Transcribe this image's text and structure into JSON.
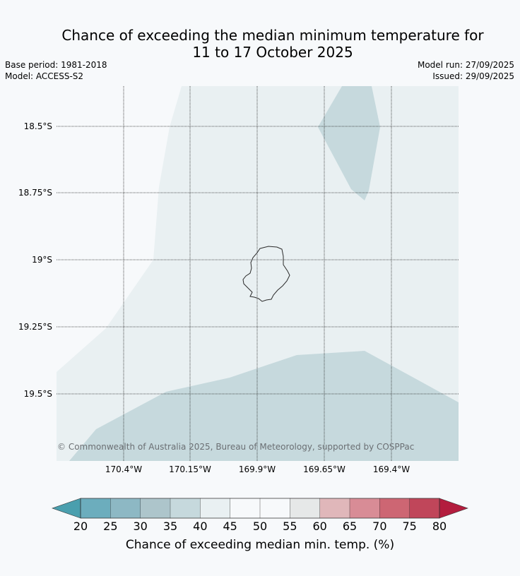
{
  "title": {
    "line1": "Chance of exceeding the median minimum temperature for",
    "line2": "11 to 17 October 2025"
  },
  "meta": {
    "base_period": "Base period: 1981-2018",
    "model": "Model: ACCESS-S2",
    "model_run": "Model run: 27/09/2025",
    "issued": "Issued: 29/09/2025"
  },
  "map": {
    "lat_labels": [
      "18.5°S",
      "18.75°S",
      "19°S",
      "19.25°S",
      "19.5°S"
    ],
    "lon_labels": [
      "170.4°W",
      "170.15°W",
      "169.9°W",
      "169.65°W",
      "169.4°W"
    ],
    "copyright": "© Commonwealth of Australia 2025, Bureau of Meteorology, supported by COSPPac",
    "colors": {
      "band_35_40": "#c6d9dd",
      "band_40_45": "#e9f0f2",
      "band_45_50": "#f7f9fb",
      "coast": "#2b2b2b",
      "grid": "#222222"
    }
  },
  "colorbar": {
    "label": "Chance of exceeding median min. temp. (%)",
    "ticks": [
      "20",
      "25",
      "30",
      "35",
      "40",
      "45",
      "50",
      "55",
      "60",
      "65",
      "70",
      "75",
      "80"
    ],
    "under_color": "#4a9fae",
    "over_color": "#b31d3e",
    "band_colors": [
      "#6cadbd",
      "#8db8c4",
      "#adc5cb",
      "#c6d9dd",
      "#e9f0f2",
      "#f7f9fb",
      "#f7f9fb",
      "#e6e8e8",
      "#e0b7ba",
      "#d88c96",
      "#cd6673",
      "#c0465a"
    ]
  }
}
